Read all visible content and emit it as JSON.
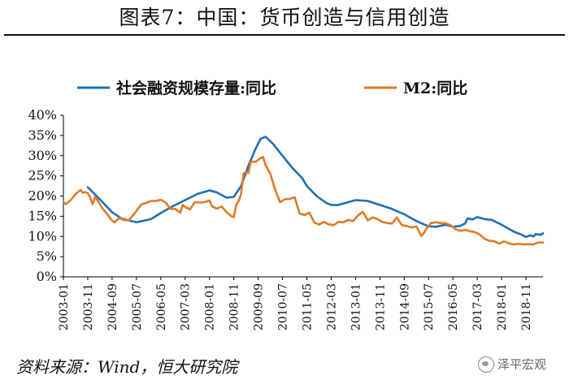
{
  "title": "图表7：中国：货币创造与信用创造",
  "source": "资料来源：Wind，恒大研究院",
  "watermark": "泽平宏观",
  "chart_data": {
    "type": "line",
    "ylabel": "",
    "xlabel": "",
    "ylim": [
      0,
      40
    ],
    "yticks": [
      "0%",
      "5%",
      "10%",
      "15%",
      "20%",
      "25%",
      "30%",
      "35%",
      "40%"
    ],
    "xticks": [
      "2003-01",
      "2003-11",
      "2004-09",
      "2005-07",
      "2006-05",
      "2007-03",
      "2008-01",
      "2008-11",
      "2009-09",
      "2010-07",
      "2011-05",
      "2012-03",
      "2013-01",
      "2013-11",
      "2014-09",
      "2015-07",
      "2016-05",
      "2017-03",
      "2018-01",
      "2018-11"
    ],
    "legend_position": "top",
    "series": [
      {
        "name": "社会融资规模存量:同比",
        "color": "#1f6fb4",
        "points": [
          [
            "2003-11",
            22.2
          ],
          [
            "2004-03",
            19.8
          ],
          [
            "2004-09",
            16.0
          ],
          [
            "2005-01",
            14.4
          ],
          [
            "2005-07",
            13.5
          ],
          [
            "2006-01",
            14.3
          ],
          [
            "2006-05",
            15.8
          ],
          [
            "2006-10",
            17.5
          ],
          [
            "2007-03",
            19.0
          ],
          [
            "2007-08",
            20.5
          ],
          [
            "2008-01",
            21.4
          ],
          [
            "2008-04",
            20.9
          ],
          [
            "2008-08",
            19.6
          ],
          [
            "2008-11",
            19.8
          ],
          [
            "2009-02",
            22.5
          ],
          [
            "2009-05",
            27.5
          ],
          [
            "2009-08",
            31.8
          ],
          [
            "2009-10",
            34.2
          ],
          [
            "2009-12",
            34.7
          ],
          [
            "2010-03",
            33.0
          ],
          [
            "2010-07",
            30.0
          ],
          [
            "2010-11",
            27.0
          ],
          [
            "2011-03",
            24.5
          ],
          [
            "2011-05",
            22.5
          ],
          [
            "2011-09",
            20.0
          ],
          [
            "2012-01",
            18.3
          ],
          [
            "2012-03",
            17.8
          ],
          [
            "2012-06",
            17.8
          ],
          [
            "2012-10",
            18.5
          ],
          [
            "2013-01",
            19.0
          ],
          [
            "2013-06",
            18.8
          ],
          [
            "2013-11",
            17.8
          ],
          [
            "2014-04",
            16.8
          ],
          [
            "2014-09",
            15.5
          ],
          [
            "2015-02",
            13.8
          ],
          [
            "2015-07",
            12.5
          ],
          [
            "2015-10",
            12.4
          ],
          [
            "2016-02",
            12.9
          ],
          [
            "2016-05",
            12.4
          ],
          [
            "2016-08",
            12.6
          ],
          [
            "2016-10",
            13.2
          ],
          [
            "2016-11",
            14.5
          ],
          [
            "2017-01",
            14.2
          ],
          [
            "2017-03",
            14.8
          ],
          [
            "2017-06",
            14.3
          ],
          [
            "2017-09",
            14.1
          ],
          [
            "2017-12",
            13.2
          ],
          [
            "2018-03",
            12.2
          ],
          [
            "2018-06",
            11.2
          ],
          [
            "2018-09",
            10.5
          ],
          [
            "2018-11",
            9.9
          ],
          [
            "2019-01",
            10.3
          ],
          [
            "2019-02",
            10.0
          ],
          [
            "2019-03",
            10.6
          ],
          [
            "2019-05",
            10.4
          ],
          [
            "2019-06",
            10.8
          ]
        ]
      },
      {
        "name": "M2:同比",
        "color": "#e07b25",
        "points": [
          [
            "2003-01",
            18.5
          ],
          [
            "2003-02",
            18.0
          ],
          [
            "2003-04",
            19.0
          ],
          [
            "2003-06",
            20.5
          ],
          [
            "2003-08",
            21.5
          ],
          [
            "2003-09",
            20.8
          ],
          [
            "2003-10",
            21.0
          ],
          [
            "2003-11",
            20.7
          ],
          [
            "2003-12",
            19.6
          ],
          [
            "2004-01",
            18.0
          ],
          [
            "2004-02",
            19.8
          ],
          [
            "2004-03",
            19.0
          ],
          [
            "2004-05",
            17.0
          ],
          [
            "2004-07",
            15.5
          ],
          [
            "2004-09",
            13.9
          ],
          [
            "2004-10",
            13.5
          ],
          [
            "2004-12",
            14.6
          ],
          [
            "2005-02",
            14.0
          ],
          [
            "2005-04",
            14.1
          ],
          [
            "2005-07",
            16.3
          ],
          [
            "2005-09",
            17.9
          ],
          [
            "2005-11",
            18.3
          ],
          [
            "2006-01",
            18.8
          ],
          [
            "2006-03",
            18.8
          ],
          [
            "2006-05",
            19.1
          ],
          [
            "2006-07",
            18.4
          ],
          [
            "2006-09",
            16.8
          ],
          [
            "2006-11",
            16.8
          ],
          [
            "2007-01",
            15.9
          ],
          [
            "2007-02",
            17.8
          ],
          [
            "2007-03",
            17.3
          ],
          [
            "2007-05",
            16.7
          ],
          [
            "2007-07",
            18.5
          ],
          [
            "2007-09",
            18.4
          ],
          [
            "2007-11",
            18.5
          ],
          [
            "2008-01",
            18.9
          ],
          [
            "2008-02",
            17.5
          ],
          [
            "2008-04",
            16.9
          ],
          [
            "2008-06",
            17.4
          ],
          [
            "2008-08",
            16.0
          ],
          [
            "2008-10",
            15.0
          ],
          [
            "2008-11",
            14.8
          ],
          [
            "2008-12",
            17.8
          ],
          [
            "2009-01",
            18.8
          ],
          [
            "2009-02",
            20.5
          ],
          [
            "2009-03",
            25.5
          ],
          [
            "2009-04",
            26.0
          ],
          [
            "2009-05",
            25.7
          ],
          [
            "2009-06",
            28.5
          ],
          [
            "2009-08",
            28.5
          ],
          [
            "2009-10",
            29.4
          ],
          [
            "2009-11",
            29.7
          ],
          [
            "2009-12",
            27.7
          ],
          [
            "2010-02",
            25.5
          ],
          [
            "2010-04",
            21.5
          ],
          [
            "2010-06",
            18.5
          ],
          [
            "2010-08",
            19.2
          ],
          [
            "2010-10",
            19.3
          ],
          [
            "2010-12",
            19.7
          ],
          [
            "2011-02",
            15.7
          ],
          [
            "2011-04",
            15.3
          ],
          [
            "2011-06",
            15.9
          ],
          [
            "2011-08",
            13.5
          ],
          [
            "2011-10",
            12.9
          ],
          [
            "2011-12",
            13.6
          ],
          [
            "2012-02",
            13.0
          ],
          [
            "2012-04",
            12.8
          ],
          [
            "2012-06",
            13.6
          ],
          [
            "2012-08",
            13.5
          ],
          [
            "2012-10",
            14.1
          ],
          [
            "2012-12",
            13.8
          ],
          [
            "2013-02",
            15.2
          ],
          [
            "2013-04",
            16.1
          ],
          [
            "2013-06",
            14.0
          ],
          [
            "2013-08",
            14.7
          ],
          [
            "2013-10",
            14.3
          ],
          [
            "2013-12",
            13.6
          ],
          [
            "2014-02",
            13.3
          ],
          [
            "2014-04",
            13.2
          ],
          [
            "2014-06",
            14.7
          ],
          [
            "2014-08",
            12.8
          ],
          [
            "2014-10",
            12.6
          ],
          [
            "2014-12",
            12.2
          ],
          [
            "2015-02",
            12.5
          ],
          [
            "2015-04",
            10.1
          ],
          [
            "2015-05",
            10.8
          ],
          [
            "2015-06",
            11.8
          ],
          [
            "2015-08",
            13.3
          ],
          [
            "2015-10",
            13.5
          ],
          [
            "2015-12",
            13.3
          ],
          [
            "2016-02",
            13.3
          ],
          [
            "2016-04",
            12.8
          ],
          [
            "2016-06",
            11.8
          ],
          [
            "2016-08",
            11.4
          ],
          [
            "2016-10",
            11.6
          ],
          [
            "2016-12",
            11.3
          ],
          [
            "2017-02",
            11.1
          ],
          [
            "2017-04",
            10.5
          ],
          [
            "2017-06",
            9.4
          ],
          [
            "2017-08",
            8.9
          ],
          [
            "2017-10",
            8.8
          ],
          [
            "2017-12",
            8.2
          ],
          [
            "2018-02",
            8.8
          ],
          [
            "2018-04",
            8.3
          ],
          [
            "2018-06",
            8.0
          ],
          [
            "2018-08",
            8.2
          ],
          [
            "2018-10",
            8.0
          ],
          [
            "2018-12",
            8.1
          ],
          [
            "2019-02",
            8.0
          ],
          [
            "2019-04",
            8.5
          ],
          [
            "2019-05",
            8.5
          ],
          [
            "2019-06",
            8.5
          ]
        ]
      }
    ]
  }
}
